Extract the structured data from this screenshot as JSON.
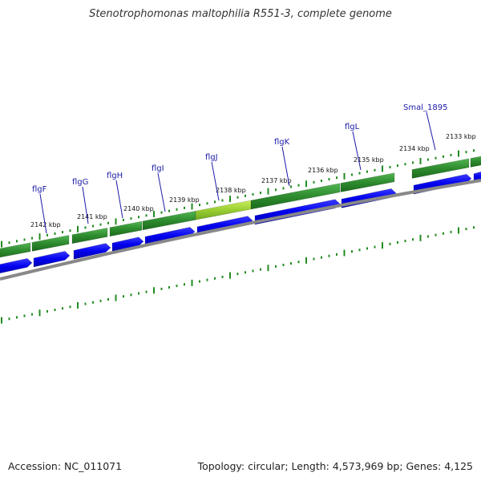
{
  "title": "Stenotrophomonas maltophilia R551-3, complete genome",
  "footer": {
    "accession_label": "Accession:",
    "accession": "NC_011071",
    "topology_label": "Topology:",
    "topology": "circular",
    "length_label": "Length:",
    "length": "4,573,969 bp",
    "genes_label": "Genes:",
    "genes": "4,125"
  },
  "kbp_labels": [
    "2142 kbp",
    "2141 kbp",
    "2140 kbp",
    "2139 kbp",
    "2138 kbp",
    "2137 kbp",
    "2136 kbp",
    "2135 kbp",
    "2134 kbp",
    "2133 kbp"
  ],
  "gene_labels": [
    "flgF",
    "flgG",
    "flgH",
    "flgI",
    "flgJ",
    "flgK",
    "flgL",
    "Smal_1895"
  ],
  "colors": {
    "gene_track": "#2e8b2e",
    "highlight_gene": "#9acd32",
    "cds_track": "#0000ee",
    "backbone": "#888888",
    "tick": "#228b22",
    "gene_label": "#1a1aa6"
  }
}
